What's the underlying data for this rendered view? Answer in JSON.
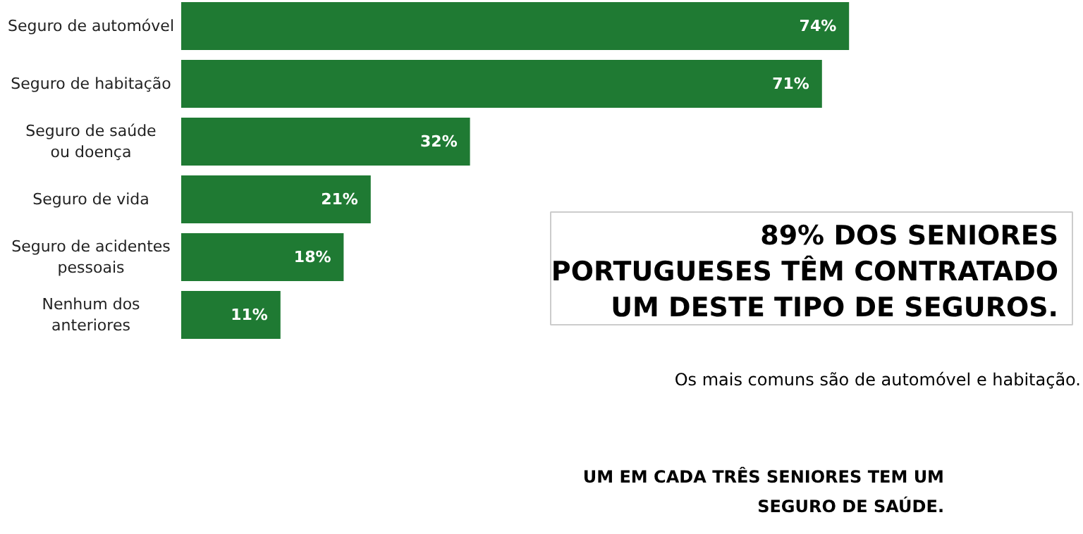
{
  "chart_data": {
    "type": "bar",
    "orientation": "horizontal",
    "categories": [
      "Seguro de automóvel",
      "Seguro de habitação",
      "Seguro de saúde\nou doença",
      "Seguro de vida",
      "Seguro de acidentes\npessoais",
      "Nenhum dos\nanteriores"
    ],
    "values": [
      74,
      71,
      32,
      21,
      18,
      11
    ],
    "value_labels": [
      "74%",
      "71%",
      "32%",
      "21%",
      "18%",
      "11%"
    ],
    "color": "#1f7a33",
    "annotations": [
      "89% DOS SENIORES\nPORTUGUESES TÊM CONTRATADO\nUM DESTE TIPO DE SEGUROS.",
      "Os mais comuns são de automóvel e habitação.",
      "UM EM CADA TRÊS SENIORES TEM UM\nSEGURO DE SAÚDE."
    ]
  }
}
